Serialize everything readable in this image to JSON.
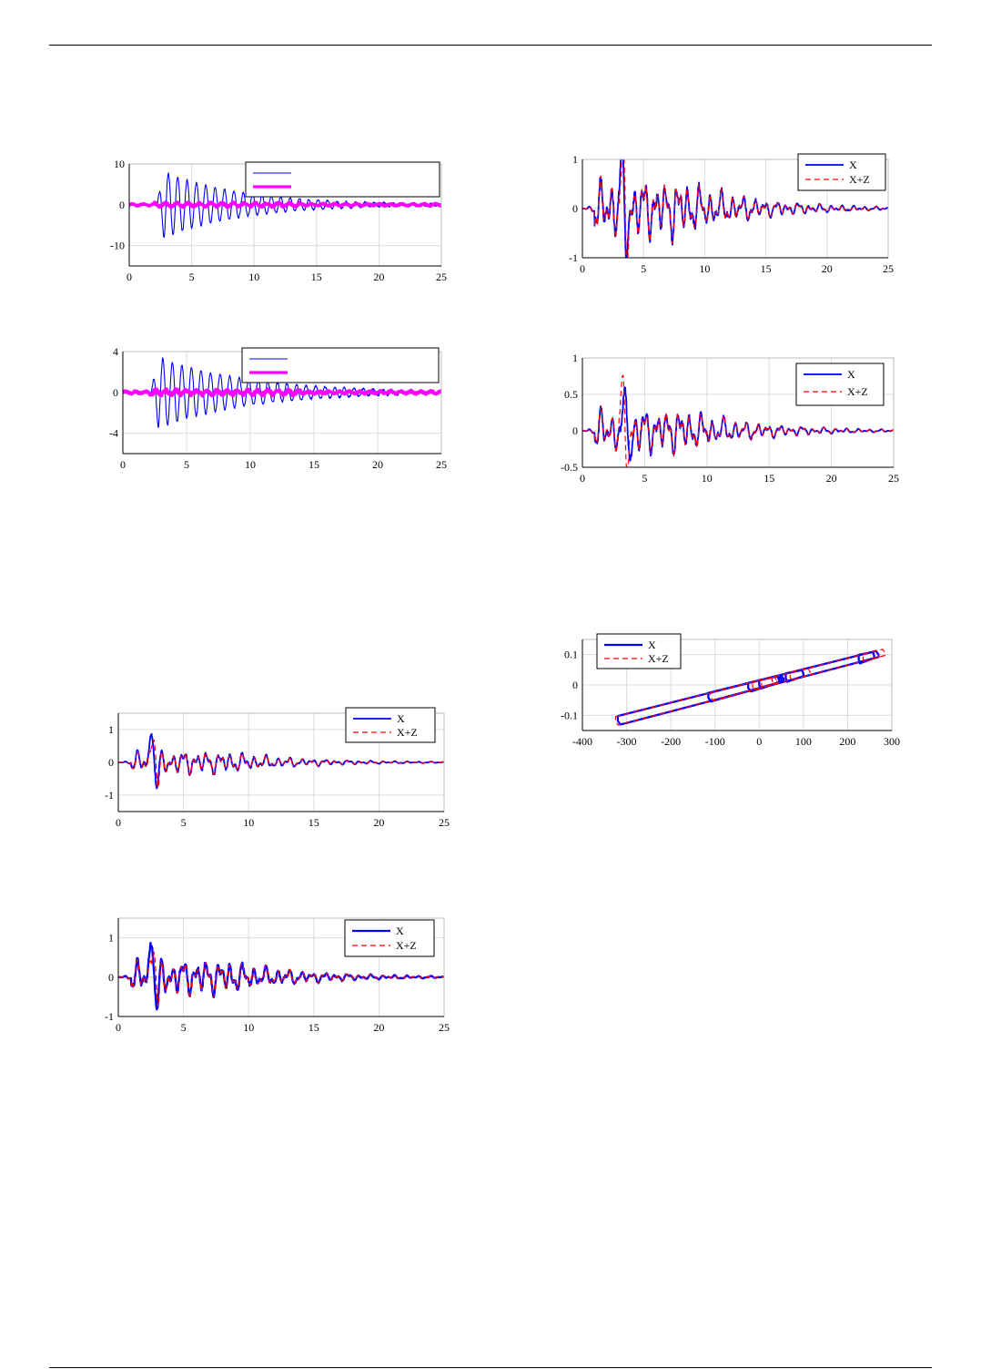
{
  "colors": {
    "blue": "#0000ff",
    "red": "#ff0000",
    "magenta": "#ff00ff",
    "navy": "#0000cc",
    "grid": "#dcdcdc"
  },
  "chart_data": [
    {
      "id": "c1",
      "type": "line",
      "xlim": [
        0,
        25
      ],
      "ylim": [
        -15,
        10
      ],
      "xticks": [
        "0",
        "5",
        "10",
        "15",
        "20",
        "25"
      ],
      "yticks": [
        "10",
        "0",
        "-10"
      ],
      "legend": {
        "position": "top-right",
        "entries": [
          "",
          ""
        ]
      },
      "series": [
        {
          "style": "thin-blue",
          "kind": "decay",
          "amplitude": 9,
          "period": 0.75,
          "noise": 0.4,
          "onset": 2.2,
          "decay_rate": 0.16
        },
        {
          "style": "thick-magenta",
          "kind": "noise",
          "amplitude": 0.8,
          "period": 0.9,
          "noise": 0.6,
          "onset": 0
        }
      ]
    },
    {
      "id": "c2",
      "type": "line",
      "xlim": [
        0,
        25
      ],
      "ylim": [
        -6,
        4
      ],
      "xticks": [
        "0",
        "5",
        "10",
        "15",
        "20",
        "25"
      ],
      "yticks": [
        "4",
        "0",
        "-4"
      ],
      "legend": {
        "position": "top-right",
        "entries": [
          "",
          ""
        ]
      },
      "series": [
        {
          "style": "thin-blue",
          "kind": "decay",
          "amplitude": 3.8,
          "period": 0.75,
          "noise": 0.2,
          "onset": 2.2,
          "decay_rate": 0.14
        },
        {
          "style": "thick-magenta",
          "kind": "noise",
          "amplitude": 0.35,
          "period": 0.8,
          "noise": 0.4,
          "onset": 0
        }
      ]
    },
    {
      "id": "c3",
      "type": "line",
      "xlim": [
        0,
        25
      ],
      "ylim": [
        -1,
        1
      ],
      "xticks": [
        "0",
        "5",
        "10",
        "15",
        "20",
        "25"
      ],
      "yticks": [
        "1",
        "0",
        "-1"
      ],
      "legend": {
        "position": "top-right",
        "entries": [
          "X",
          "X+Z"
        ]
      },
      "series": [
        {
          "name": "X",
          "style": "blue",
          "kind": "quake",
          "amplitude": 0.6,
          "peak": 0.9,
          "peak_x": 3.2
        },
        {
          "name": "X+Z",
          "style": "red-dashed",
          "kind": "quake",
          "amplitude": 0.6,
          "peak": 0.95,
          "peak_x": 3.3
        }
      ]
    },
    {
      "id": "c4",
      "type": "line",
      "xlim": [
        0,
        25
      ],
      "ylim": [
        -0.5,
        1
      ],
      "xticks": [
        "0",
        "5",
        "10",
        "15",
        "20",
        "25"
      ],
      "yticks": [
        "1",
        "0.5",
        "0",
        "-0.5"
      ],
      "legend": {
        "position": "top-right",
        "entries": [
          "X",
          "X+Z"
        ]
      },
      "series": [
        {
          "name": "X",
          "style": "blue",
          "kind": "quake",
          "amplitude": 0.3,
          "peak": 0.45,
          "peak_x": 3.5
        },
        {
          "name": "X+Z",
          "style": "red-dashed",
          "kind": "quake",
          "amplitude": 0.3,
          "peak": 0.6,
          "peak_x": 3.2
        }
      ]
    },
    {
      "id": "c5",
      "type": "line",
      "xlim": [
        0,
        25
      ],
      "ylim": [
        -1.5,
        1.5
      ],
      "xticks": [
        "0",
        "5",
        "10",
        "15",
        "20",
        "25"
      ],
      "yticks": [
        "1",
        "0",
        "-1"
      ],
      "legend": {
        "position": "top-right",
        "entries": [
          "X",
          "X+Z"
        ]
      },
      "series": [
        {
          "name": "X",
          "style": "blue",
          "kind": "quake",
          "amplitude": 0.35,
          "peak": 1.0,
          "peak_x": 2.6
        },
        {
          "name": "X+Z",
          "style": "red-dashed",
          "kind": "quake",
          "amplitude": 0.35,
          "peak": 1.0,
          "peak_x": 2.7
        }
      ]
    },
    {
      "id": "c6",
      "type": "line",
      "xlim": [
        0,
        25
      ],
      "ylim": [
        -1,
        1.5
      ],
      "xticks": [
        "0",
        "5",
        "10",
        "15",
        "20",
        "25"
      ],
      "yticks": [
        "1",
        "0",
        "-1"
      ],
      "legend": {
        "position": "top-right",
        "entries": [
          "X",
          "X+Z"
        ]
      },
      "series": [
        {
          "name": "X",
          "style": "blue-thick",
          "kind": "quake",
          "amplitude": 0.45,
          "peak": 1.05,
          "peak_x": 2.6
        },
        {
          "name": "X+Z",
          "style": "red-dashed",
          "kind": "quake",
          "amplitude": 0.45,
          "peak": 1.0,
          "peak_x": 2.7
        }
      ]
    },
    {
      "id": "c7",
      "type": "line",
      "xlim": [
        -400,
        300
      ],
      "ylim": [
        -0.15,
        0.15
      ],
      "xticks": [
        "-400",
        "-300",
        "-200",
        "-100",
        "0",
        "100",
        "200",
        "300"
      ],
      "yticks": [
        "0.1",
        "0",
        "-0.1"
      ],
      "legend": {
        "position": "top-left",
        "entries": [
          "X",
          "X+Z"
        ]
      },
      "series": [
        {
          "name": "X",
          "style": "blue-thick",
          "kind": "hysteresis",
          "loops": [
            [
              -320,
              270
            ],
            [
              -115,
              50
            ],
            [
              -25,
              55
            ],
            [
              0,
              45
            ],
            [
              60,
              100
            ],
            [
              225,
              260
            ]
          ]
        },
        {
          "name": "X+Z",
          "style": "red-dashed",
          "kind": "hysteresis",
          "loops": [
            [
              -325,
              285
            ],
            [
              -110,
              40
            ],
            [
              -15,
              40
            ],
            [
              5,
              30
            ],
            [
              70,
              115
            ],
            [
              235,
              270
            ]
          ]
        }
      ]
    }
  ]
}
